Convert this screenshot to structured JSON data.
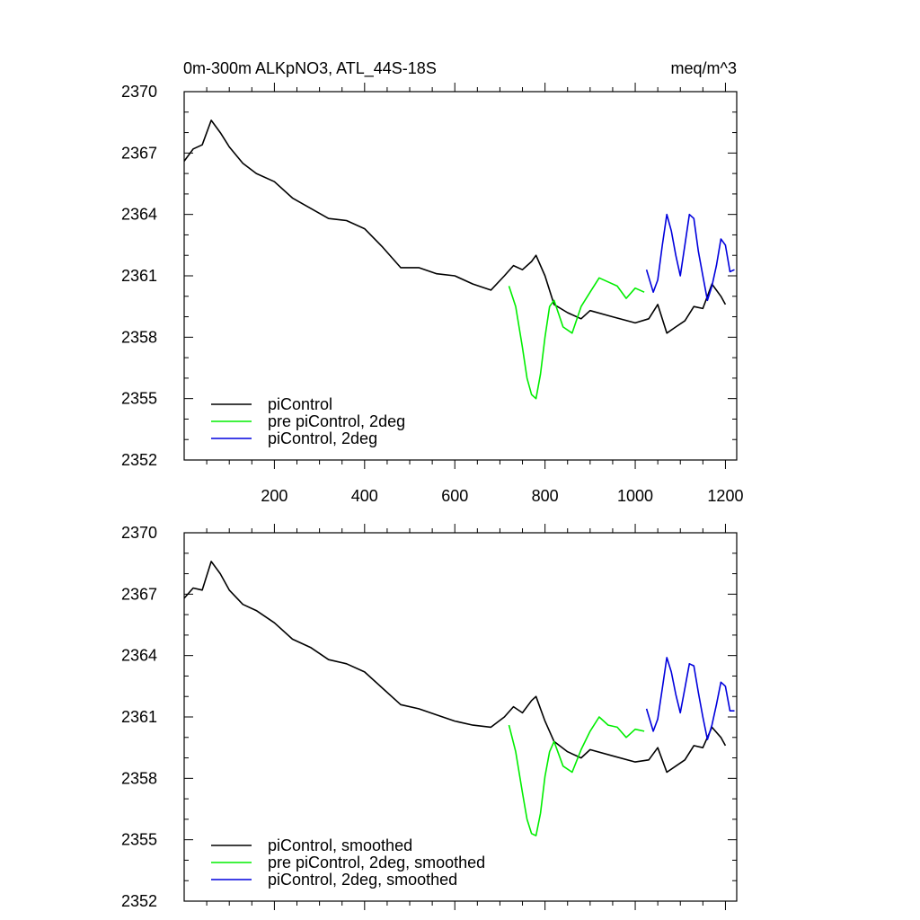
{
  "chart_data": [
    {
      "type": "line",
      "title_left": "0m-300m ALKpNO3, ATL_44S-18S",
      "title_right": "meq/m^3",
      "xlim": [
        0,
        1225
      ],
      "ylim": [
        2352,
        2370
      ],
      "yticks": [
        2352,
        2355,
        2358,
        2361,
        2364,
        2367,
        2370
      ],
      "xticks": [
        200,
        400,
        600,
        800,
        1000,
        1200
      ],
      "xtick_labels_shown": true,
      "legend_position": "bottom-left",
      "series": [
        {
          "name": "piControl",
          "color": "#000000",
          "x": [
            0,
            20,
            40,
            60,
            80,
            100,
            130,
            160,
            200,
            240,
            280,
            320,
            360,
            400,
            440,
            480,
            520,
            560,
            600,
            640,
            680,
            710,
            730,
            750,
            770,
            780,
            800,
            820,
            850,
            880,
            900,
            950,
            1000,
            1030,
            1050,
            1070,
            1090,
            1110,
            1130,
            1150,
            1170,
            1190,
            1200
          ],
          "values": [
            2366.6,
            2367.2,
            2367.4,
            2368.6,
            2368.0,
            2367.3,
            2366.5,
            2366.0,
            2365.6,
            2364.8,
            2364.3,
            2363.8,
            2363.7,
            2363.3,
            2362.4,
            2361.4,
            2361.4,
            2361.1,
            2361.0,
            2360.6,
            2360.3,
            2361.0,
            2361.5,
            2361.3,
            2361.7,
            2362.0,
            2361.0,
            2359.6,
            2359.2,
            2358.9,
            2359.3,
            2359.0,
            2358.7,
            2358.9,
            2359.6,
            2358.2,
            2358.5,
            2358.8,
            2359.5,
            2359.4,
            2360.6,
            2360.0,
            2359.6
          ]
        },
        {
          "name": "pre piControl, 2deg",
          "color": "#00ee00",
          "x": [
            720,
            735,
            750,
            760,
            770,
            780,
            790,
            800,
            810,
            820,
            840,
            860,
            880,
            900,
            920,
            940,
            960,
            980,
            1000,
            1020
          ],
          "values": [
            2360.5,
            2359.5,
            2357.5,
            2356.0,
            2355.2,
            2355.0,
            2356.2,
            2358.0,
            2359.5,
            2359.8,
            2358.5,
            2358.2,
            2359.5,
            2360.2,
            2360.9,
            2360.7,
            2360.5,
            2359.9,
            2360.4,
            2360.2
          ]
        },
        {
          "name": "piControl, 2deg",
          "color": "#0000dd",
          "x": [
            1025,
            1040,
            1050,
            1060,
            1070,
            1080,
            1090,
            1100,
            1110,
            1120,
            1130,
            1140,
            1150,
            1160,
            1170,
            1180,
            1190,
            1200,
            1210,
            1220
          ],
          "values": [
            2361.3,
            2360.2,
            2360.8,
            2362.5,
            2364.0,
            2363.2,
            2362.0,
            2361.0,
            2362.5,
            2364.0,
            2363.8,
            2362.2,
            2361.0,
            2359.8,
            2360.5,
            2361.5,
            2362.8,
            2362.5,
            2361.2,
            2361.3
          ]
        }
      ]
    },
    {
      "type": "line",
      "xlim": [
        0,
        1225
      ],
      "ylim": [
        2352,
        2370
      ],
      "yticks": [
        2352,
        2355,
        2358,
        2361,
        2364,
        2367,
        2370
      ],
      "xticks": [
        200,
        400,
        600,
        800,
        1000,
        1200
      ],
      "xtick_labels_shown": false,
      "legend_position": "bottom-left",
      "series": [
        {
          "name": "piControl, smoothed",
          "color": "#000000",
          "x": [
            0,
            20,
            40,
            60,
            80,
            100,
            130,
            160,
            200,
            240,
            280,
            320,
            360,
            400,
            440,
            480,
            520,
            560,
            600,
            640,
            680,
            710,
            730,
            750,
            770,
            780,
            800,
            820,
            850,
            880,
            900,
            950,
            1000,
            1030,
            1050,
            1070,
            1090,
            1110,
            1130,
            1150,
            1170,
            1190,
            1200
          ],
          "values": [
            2366.8,
            2367.3,
            2367.2,
            2368.6,
            2368.0,
            2367.2,
            2366.5,
            2366.2,
            2365.6,
            2364.8,
            2364.4,
            2363.8,
            2363.6,
            2363.2,
            2362.4,
            2361.6,
            2361.4,
            2361.1,
            2360.8,
            2360.6,
            2360.5,
            2361.0,
            2361.5,
            2361.2,
            2361.8,
            2362.0,
            2360.8,
            2359.8,
            2359.3,
            2359.0,
            2359.4,
            2359.1,
            2358.8,
            2358.9,
            2359.5,
            2358.3,
            2358.6,
            2358.9,
            2359.6,
            2359.5,
            2360.5,
            2360.0,
            2359.6
          ]
        },
        {
          "name": "pre piControl, 2deg, smoothed",
          "color": "#00ee00",
          "x": [
            720,
            735,
            750,
            760,
            770,
            780,
            790,
            800,
            810,
            820,
            840,
            860,
            880,
            900,
            920,
            940,
            960,
            980,
            1000,
            1020
          ],
          "values": [
            2360.6,
            2359.3,
            2357.3,
            2356.0,
            2355.3,
            2355.2,
            2356.3,
            2358.1,
            2359.3,
            2359.8,
            2358.6,
            2358.3,
            2359.4,
            2360.3,
            2361.0,
            2360.6,
            2360.5,
            2360.0,
            2360.4,
            2360.3
          ]
        },
        {
          "name": "piControl, 2deg, smoothed",
          "color": "#0000dd",
          "x": [
            1025,
            1040,
            1050,
            1060,
            1070,
            1080,
            1090,
            1100,
            1110,
            1120,
            1130,
            1140,
            1150,
            1160,
            1170,
            1180,
            1190,
            1200,
            1210,
            1220
          ],
          "values": [
            2361.4,
            2360.3,
            2360.9,
            2362.4,
            2363.9,
            2363.2,
            2362.1,
            2361.2,
            2362.4,
            2363.6,
            2363.5,
            2362.2,
            2361.0,
            2359.9,
            2360.6,
            2361.6,
            2362.7,
            2362.5,
            2361.3,
            2361.3
          ]
        }
      ]
    }
  ]
}
